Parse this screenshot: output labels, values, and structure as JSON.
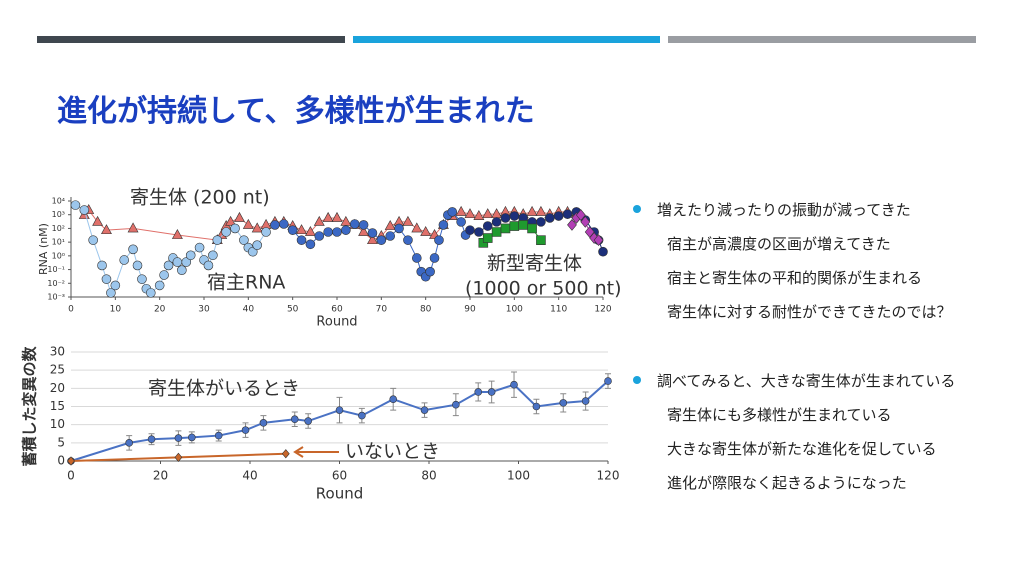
{
  "title": "進化が持続して、多様性が生まれた",
  "bullets": [
    {
      "text": "増えたり減ったりの振動が減ってきた",
      "sub": [
        "宿主が高濃度の区画が増えてきた",
        "宿主と寄生体の平和的関係が生まれる",
        "寄生体に対する耐性ができてきたのでは？"
      ]
    },
    {
      "text": "調べてみると、大きな寄生体が生まれている",
      "sub": [
        "寄生体にも多様性が生まれている",
        "大きな寄生体が新たな進化を促している",
        "進化が際限なく起きるようになった"
      ]
    }
  ],
  "chart_data": [
    {
      "type": "line",
      "ylog": true,
      "xlabel": "Round",
      "ylabel": "RNA (nM)",
      "xlim": [
        0,
        120
      ],
      "xticks": [
        0,
        10,
        20,
        30,
        40,
        50,
        60,
        70,
        80,
        90,
        100,
        110,
        120
      ],
      "ylim": [
        0.001,
        10000
      ],
      "yticks": [
        {
          "value": 10000,
          "label": "10⁴"
        },
        {
          "value": 1000,
          "label": "10³"
        },
        {
          "value": 100,
          "label": "10²"
        },
        {
          "value": 10,
          "label": "10¹"
        },
        {
          "value": 1,
          "label": "10⁰"
        },
        {
          "value": 0.1,
          "label": "10⁻¹"
        },
        {
          "value": 0.01,
          "label": "10⁻²"
        },
        {
          "value": 0.001,
          "label": "10⁻³"
        }
      ],
      "annotations": [
        "(1000 or 500 nt)"
      ],
      "series": [
        {
          "name": "寄生体 (200 nt)",
          "color": "#e0706a",
          "marker": "triangle",
          "x": [
            3,
            4,
            6,
            8,
            14,
            24,
            33,
            34,
            35,
            36,
            38,
            40,
            42,
            44,
            46,
            48,
            50,
            52,
            54,
            56,
            58,
            60,
            62,
            64,
            66,
            68,
            70,
            72,
            74,
            76,
            78,
            80,
            82,
            84,
            86,
            88,
            90,
            92,
            94,
            96,
            98,
            100,
            102,
            104,
            106,
            108,
            110,
            112,
            114
          ],
          "values": [
            950,
            2200,
            300,
            75,
            100,
            33,
            14,
            33,
            150,
            300,
            580,
            180,
            100,
            180,
            300,
            300,
            150,
            75,
            55,
            300,
            580,
            580,
            300,
            180,
            55,
            14,
            28,
            150,
            300,
            300,
            100,
            55,
            33,
            180,
            800,
            1600,
            1100,
            800,
            1100,
            1100,
            1600,
            1600,
            1100,
            1600,
            1600,
            1100,
            1600,
            1600,
            1100
          ]
        },
        {
          "name": "宿主RNA",
          "color": "#9cc6ec",
          "marker": "circle",
          "x": [
            1,
            3,
            5,
            7,
            8,
            9,
            10,
            12,
            14,
            15,
            16,
            17,
            18,
            20,
            21,
            22,
            23,
            24,
            25,
            26,
            27,
            29,
            30,
            31,
            32,
            33,
            35,
            37,
            39,
            40,
            41,
            42,
            44
          ],
          "values": [
            5000,
            2200,
            14,
            0.2,
            0.02,
            0.002,
            0.007,
            0.5,
            3,
            0.2,
            0.02,
            0.004,
            0.002,
            0.007,
            0.04,
            0.2,
            0.7,
            0.35,
            0.09,
            0.35,
            1.1,
            4,
            0.5,
            0.2,
            1.1,
            14,
            55,
            100,
            14,
            4,
            2,
            6,
            55
          ]
        },
        {
          "color": "#3b68c4",
          "marker": "circle",
          "x": [
            46,
            48,
            50,
            52,
            54,
            56,
            58,
            60,
            62,
            64,
            66,
            68,
            70,
            72,
            74,
            76,
            78,
            79,
            80,
            81,
            82,
            83,
            84,
            85,
            86,
            88,
            89
          ],
          "values": [
            180,
            210,
            75,
            14,
            7,
            28,
            55,
            55,
            75,
            210,
            180,
            46,
            14,
            28,
            100,
            14,
            0.7,
            0.07,
            0.03,
            0.07,
            0.7,
            14,
            180,
            950,
            1600,
            300,
            33
          ]
        },
        {
          "color": "#1c2f7a",
          "marker": "circle",
          "x": [
            90,
            92,
            94,
            96,
            98,
            100,
            102,
            104,
            106,
            108,
            110,
            112,
            114,
            116,
            118,
            119,
            120
          ],
          "values": [
            75,
            55,
            150,
            300,
            580,
            800,
            580,
            300,
            300,
            580,
            800,
            1100,
            1600,
            410,
            55,
            14,
            2
          ]
        },
        {
          "name": "新型寄生体",
          "color": "#1f9a2e",
          "marker": "square",
          "x": [
            93,
            94,
            96,
            98,
            100,
            102,
            104,
            106
          ],
          "values": [
            9,
            20,
            55,
            100,
            150,
            180,
            100,
            14
          ]
        },
        {
          "color": "#b23fb5",
          "marker": "diamond",
          "x": [
            113,
            114,
            115,
            116,
            117,
            118,
            119
          ],
          "values": [
            180,
            580,
            950,
            300,
            55,
            20,
            14
          ]
        }
      ]
    },
    {
      "type": "line",
      "xlabel": "Round",
      "ylabel": "蓄積した変異の数",
      "grid": true,
      "xlim": [
        0,
        120
      ],
      "xticks": [
        0,
        20,
        40,
        60,
        80,
        100,
        120
      ],
      "ylim": [
        0,
        30
      ],
      "yticks": [
        0,
        5,
        10,
        15,
        20,
        25,
        30
      ],
      "series": [
        {
          "name": "寄生体がいるとき",
          "color": "#4a72c4",
          "marker": "circle",
          "x": [
            0,
            13,
            18,
            24,
            27,
            33,
            39,
            43,
            50,
            53,
            60,
            65,
            72,
            79,
            86,
            91,
            94,
            99,
            104,
            110,
            115,
            120
          ],
          "values": [
            0,
            5,
            6,
            6.3,
            6.5,
            7,
            8.5,
            10.5,
            11.5,
            11,
            14,
            12.5,
            17,
            14,
            15.5,
            19,
            19,
            21,
            15,
            16,
            16.5,
            22
          ],
          "error": [
            0,
            2,
            1.5,
            2,
            1.5,
            1.5,
            2,
            2,
            2,
            2,
            3.5,
            2,
            3,
            2,
            3,
            2.5,
            3,
            3.5,
            2,
            2.5,
            2.5,
            2
          ]
        },
        {
          "name": "いないとき",
          "color": "#c8662a",
          "marker": "diamond",
          "x": [
            0,
            24,
            48
          ],
          "values": [
            0,
            1,
            2
          ]
        }
      ]
    }
  ]
}
